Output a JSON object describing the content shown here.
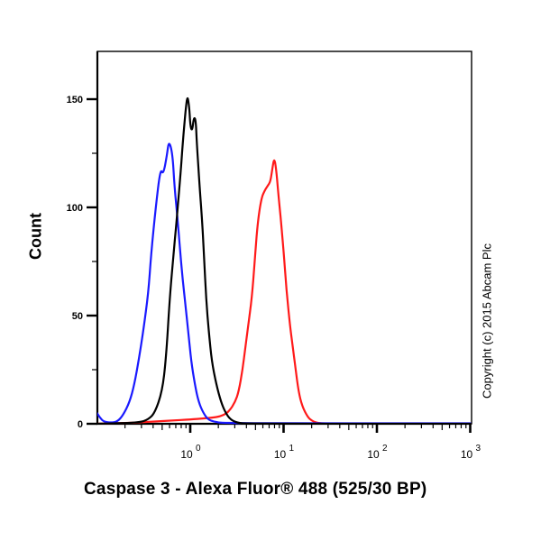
{
  "chart_data": {
    "type": "line",
    "subtype": "flow-cytometry-histogram-overlay",
    "title": "",
    "xlabel": "Caspase 3 - Alexa Fluor® 488 (525/30 BP)",
    "ylabel": "Count",
    "xscale": "log",
    "xlim": [
      0.1,
      1000
    ],
    "ylim": [
      0,
      170
    ],
    "x_ticks": [
      {
        "value": 1,
        "label_base": "10",
        "label_exp": "0"
      },
      {
        "value": 10,
        "label_base": "10",
        "label_exp": "1"
      },
      {
        "value": 100,
        "label_base": "10",
        "label_exp": "2"
      },
      {
        "value": 1000,
        "label_base": "10",
        "label_exp": "3"
      }
    ],
    "y_ticks": [
      0,
      50,
      100,
      150
    ],
    "y_minor_step": 25,
    "grid": false,
    "legend": null,
    "series": [
      {
        "name": "blue",
        "color": "#1a1aff",
        "points_log10x_count": [
          [
            -1.0,
            5
          ],
          [
            -0.97,
            3
          ],
          [
            -0.93,
            1
          ],
          [
            -0.85,
            0.5
          ],
          [
            -0.78,
            1
          ],
          [
            -0.72,
            4
          ],
          [
            -0.65,
            10
          ],
          [
            -0.6,
            18
          ],
          [
            -0.55,
            30
          ],
          [
            -0.5,
            44
          ],
          [
            -0.45,
            60
          ],
          [
            -0.42,
            78
          ],
          [
            -0.37,
            100
          ],
          [
            -0.32,
            118
          ],
          [
            -0.29,
            115
          ],
          [
            -0.25,
            124
          ],
          [
            -0.23,
            131
          ],
          [
            -0.19,
            125
          ],
          [
            -0.17,
            110
          ],
          [
            -0.13,
            92
          ],
          [
            -0.1,
            75
          ],
          [
            -0.06,
            58
          ],
          [
            -0.02,
            42
          ],
          [
            0.01,
            29
          ],
          [
            0.05,
            18
          ],
          [
            0.09,
            10
          ],
          [
            0.14,
            5
          ],
          [
            0.19,
            2
          ],
          [
            0.25,
            1
          ],
          [
            0.35,
            0.3
          ],
          [
            1.5,
            0.2
          ],
          [
            3.0,
            0.2
          ]
        ]
      },
      {
        "name": "black",
        "color": "#000000",
        "points_log10x_count": [
          [
            -1.0,
            0
          ],
          [
            -0.55,
            0.5
          ],
          [
            -0.45,
            2
          ],
          [
            -0.38,
            5
          ],
          [
            -0.3,
            15
          ],
          [
            -0.26,
            30
          ],
          [
            -0.22,
            58
          ],
          [
            -0.18,
            78
          ],
          [
            -0.15,
            92
          ],
          [
            -0.11,
            112
          ],
          [
            -0.08,
            130
          ],
          [
            -0.05,
            145
          ],
          [
            -0.03,
            152
          ],
          [
            -0.01,
            146
          ],
          [
            0.0,
            138
          ],
          [
            0.02,
            135
          ],
          [
            0.04,
            142
          ],
          [
            0.06,
            140
          ],
          [
            0.07,
            130
          ],
          [
            0.1,
            110
          ],
          [
            0.13,
            92
          ],
          [
            0.15,
            75
          ],
          [
            0.17,
            58
          ],
          [
            0.2,
            42
          ],
          [
            0.23,
            29
          ],
          [
            0.28,
            18
          ],
          [
            0.33,
            10
          ],
          [
            0.38,
            5
          ],
          [
            0.43,
            2
          ],
          [
            0.5,
            0.5
          ],
          [
            0.6,
            0
          ],
          [
            3.0,
            0
          ]
        ]
      },
      {
        "name": "red",
        "color": "#ff1a1a",
        "points_log10x_count": [
          [
            -1.0,
            0
          ],
          [
            -0.6,
            0.5
          ],
          [
            -0.4,
            1
          ],
          [
            -0.2,
            1.5
          ],
          [
            0.0,
            2
          ],
          [
            0.15,
            2.5
          ],
          [
            0.28,
            3
          ],
          [
            0.36,
            4
          ],
          [
            0.42,
            6
          ],
          [
            0.48,
            10
          ],
          [
            0.52,
            15
          ],
          [
            0.56,
            25
          ],
          [
            0.59,
            35
          ],
          [
            0.62,
            45
          ],
          [
            0.66,
            58
          ],
          [
            0.69,
            75
          ],
          [
            0.72,
            92
          ],
          [
            0.76,
            104
          ],
          [
            0.8,
            108
          ],
          [
            0.83,
            110
          ],
          [
            0.86,
            112
          ],
          [
            0.88,
            118
          ],
          [
            0.9,
            123
          ],
          [
            0.92,
            118
          ],
          [
            0.94,
            108
          ],
          [
            0.97,
            95
          ],
          [
            1.0,
            80
          ],
          [
            1.03,
            62
          ],
          [
            1.07,
            45
          ],
          [
            1.1,
            35
          ],
          [
            1.13,
            25
          ],
          [
            1.16,
            15
          ],
          [
            1.2,
            8
          ],
          [
            1.26,
            3
          ],
          [
            1.3,
            1.5
          ],
          [
            1.35,
            0.5
          ],
          [
            1.45,
            0
          ],
          [
            3.0,
            0
          ]
        ]
      }
    ],
    "annotations": [
      "Copyright (c) 2015 Abcam Plc"
    ]
  },
  "labels": {
    "y_axis": "Count",
    "x_axis": "Caspase 3 - Alexa Fluor® 488 (525/30 BP)",
    "copyright": "Copyright (c) 2015 Abcam Plc"
  }
}
